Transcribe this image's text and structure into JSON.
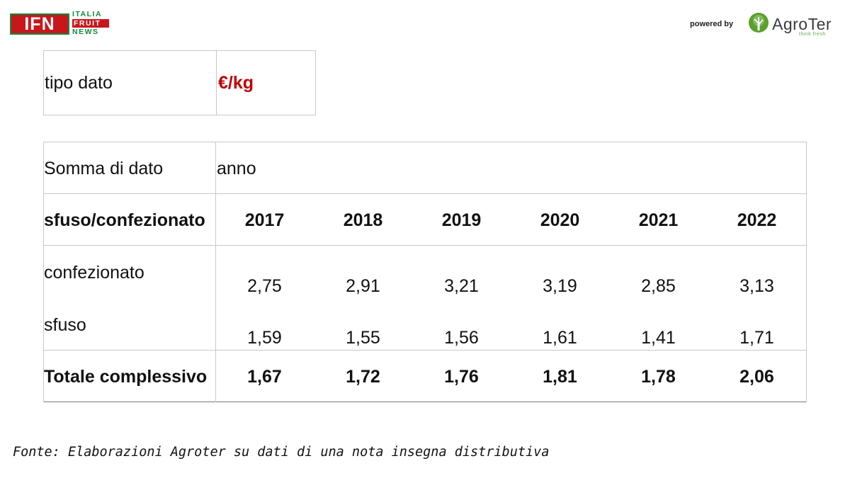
{
  "header": {
    "ifn_logo": {
      "letters": "IFN",
      "line1": "ITALIA",
      "line2": "FRUIT",
      "line3": "NEWS"
    },
    "powered_by": "powered by",
    "agroter_logo": {
      "name": "AgroTer",
      "tagline": "think fresh",
      "icon": "tree-icon"
    }
  },
  "colors": {
    "accent_red": "#c00000",
    "ifn_red": "#c8171c",
    "ifn_green": "#0e8a3a",
    "grid": "#c8c8c8"
  },
  "filter_table": {
    "label": "tipo dato",
    "value": "€/kg"
  },
  "pivot_table": {
    "title_cell": "Somma di dato",
    "column_field": "anno",
    "row_field": "sfuso/confezionato",
    "years": [
      "2017",
      "2018",
      "2019",
      "2020",
      "2021",
      "2022"
    ],
    "rows": [
      {
        "label": "confezionato",
        "values": [
          "2,75",
          "2,91",
          "3,21",
          "3,19",
          "2,85",
          "3,13"
        ]
      },
      {
        "label": "sfuso",
        "values": [
          "1,59",
          "1,55",
          "1,56",
          "1,61",
          "1,41",
          "1,71"
        ]
      }
    ],
    "total": {
      "label": "Totale complessivo",
      "values": [
        "1,67",
        "1,72",
        "1,76",
        "1,81",
        "1,78",
        "2,06"
      ]
    }
  },
  "source_note": "Fonte: Elaborazioni Agroter su dati di una nota insegna distributiva"
}
